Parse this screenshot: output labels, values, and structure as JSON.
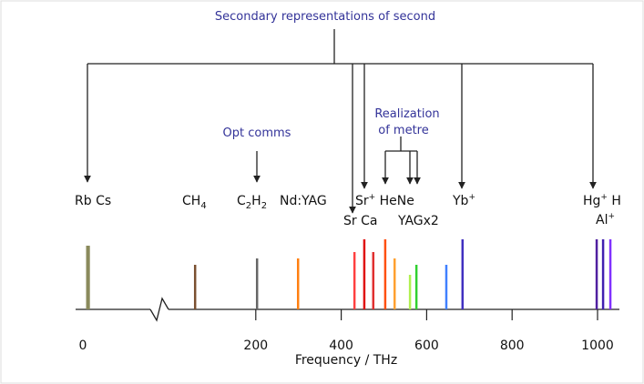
{
  "chart_data": {
    "type": "stem",
    "title": "Secondary representations of second",
    "annotations": [
      "Opt comms",
      "Realization",
      "of metre"
    ],
    "xlabel": "Frequency / THz",
    "xticks": [
      0,
      200,
      400,
      600,
      800,
      1000
    ],
    "ylim": [
      0,
      100
    ],
    "x": [
      0.0068,
      0.0092,
      58,
      203,
      299,
      431,
      454,
      475,
      503,
      525,
      561,
      576,
      646,
      684,
      998,
      1013,
      1030
    ],
    "values": [
      70,
      70,
      49,
      56,
      56,
      63,
      77,
      63,
      77,
      56,
      38,
      49,
      49,
      77,
      77,
      77,
      77
    ],
    "colors": [
      "#8a8a5c",
      "#8a8a5c",
      "#7a5030",
      "#666666",
      "#ff7f10",
      "#ff4040",
      "#e01010",
      "#e03030",
      "#ff5010",
      "#ffa030",
      "#b0f050",
      "#30d030",
      "#4080ff",
      "#4030c0",
      "#5020a0",
      "#4020b0",
      "#8030ff"
    ],
    "labels": [
      [
        {
          "t": "Rb Cs"
        }
      ],
      [
        {
          "t": "CH"
        },
        {
          "t": "4",
          "s": "sub"
        }
      ],
      [
        {
          "t": "C"
        },
        {
          "t": "2",
          "s": "sub"
        },
        {
          "t": "H"
        },
        {
          "t": "2",
          "s": "sub"
        }
      ],
      [
        {
          "t": "Nd:YAG"
        }
      ],
      [
        {
          "t": "Sr"
        },
        {
          "t": "+",
          "s": "sup"
        },
        {
          "t": " HeNe"
        }
      ],
      [
        {
          "t": "Sr Ca"
        }
      ],
      [
        {
          "t": "YAGx2"
        }
      ],
      [
        {
          "t": "Yb"
        },
        {
          "t": "+",
          "s": "sup"
        }
      ],
      [
        {
          "t": "Hg"
        },
        {
          "t": "+",
          "s": "sup"
        },
        {
          "t": " H"
        }
      ],
      [
        {
          "t": "Al"
        },
        {
          "t": "+",
          "s": "sup"
        }
      ]
    ]
  }
}
